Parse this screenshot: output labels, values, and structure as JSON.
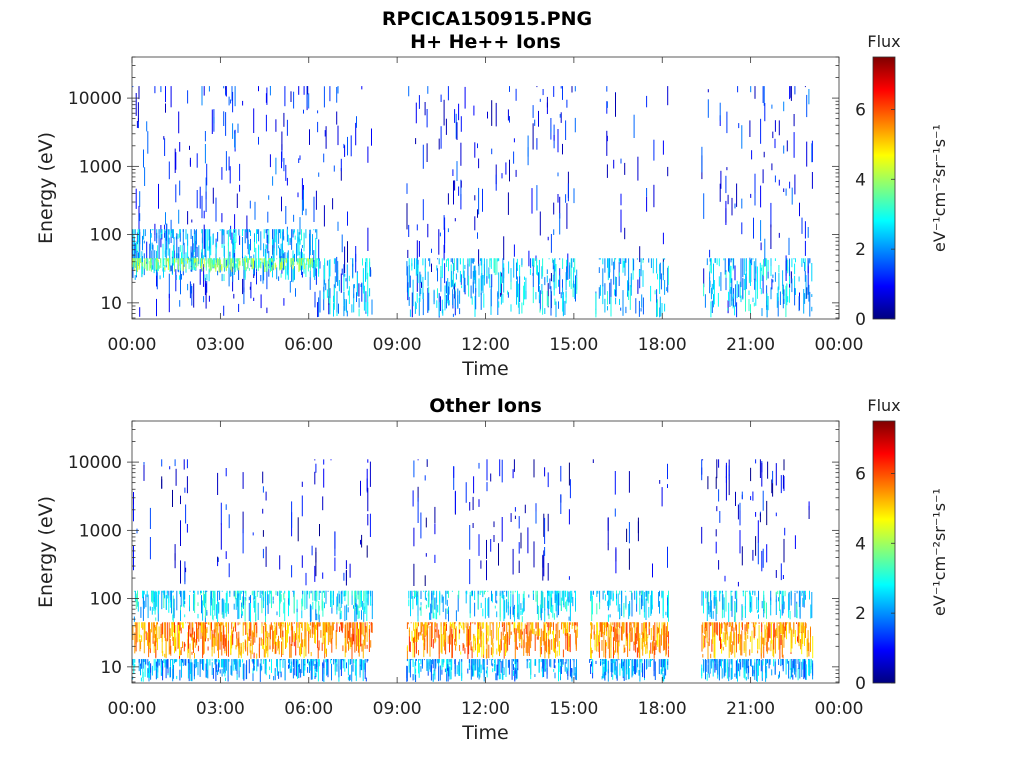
{
  "figure_title": "RPCICA150915.PNG",
  "colormap": [
    "#00007f",
    "#0000ff",
    "#007fff",
    "#00ffff",
    "#7fff7f",
    "#ffff00",
    "#ff7f00",
    "#ff0000",
    "#7f0000"
  ],
  "chart_data": [
    {
      "type": "heatmap",
      "title": "H+ He++ Ions",
      "xlabel": "Time",
      "ylabel": "Energy (eV)",
      "yscale": "log",
      "ylim": [
        5.8,
        40000
      ],
      "xlim": [
        "00:00",
        "24:00"
      ],
      "x_ticks": [
        "00:00",
        "03:00",
        "06:00",
        "09:00",
        "12:00",
        "15:00",
        "18:00",
        "21:00",
        "00:00"
      ],
      "y_ticks": [
        10,
        100,
        1000,
        10000
      ],
      "y_tick_labels": [
        "10",
        "100",
        "1000",
        "10000"
      ],
      "colorbar": {
        "title": "Flux",
        "label": "eV⁻¹cm⁻²sr⁻¹s⁻¹",
        "range": [
          0,
          7.5
        ],
        "ticks": [
          0,
          2,
          4,
          6
        ],
        "tick_labels": [
          "0",
          "2",
          "4",
          "6"
        ]
      },
      "data_gaps_hours": [
        [
          8.15,
          9.3
        ],
        [
          15.1,
          15.7
        ],
        [
          18.2,
          19.3
        ]
      ],
      "data_end_hour": 23.1,
      "bands": [
        {
          "t0": 0.0,
          "t1": 6.3,
          "e0": 6,
          "e1": 15000,
          "flux": 1.2,
          "density": 0.55
        },
        {
          "t0": 6.3,
          "t1": 8.15,
          "e0": 6,
          "e1": 15000,
          "flux": 1.0,
          "density": 0.35
        },
        {
          "t0": 9.3,
          "t1": 15.1,
          "e0": 6,
          "e1": 15000,
          "flux": 1.0,
          "density": 0.4
        },
        {
          "t0": 15.7,
          "t1": 18.2,
          "e0": 6,
          "e1": 15000,
          "flux": 1.0,
          "density": 0.25
        },
        {
          "t0": 19.3,
          "t1": 23.1,
          "e0": 6,
          "e1": 15000,
          "flux": 1.2,
          "density": 0.45
        },
        {
          "t0": 0.0,
          "t1": 6.3,
          "e0": 20,
          "e1": 120,
          "flux": 2.3,
          "density": 0.8
        },
        {
          "t0": 0.0,
          "t1": 6.3,
          "e0": 28,
          "e1": 45,
          "flux": 3.7,
          "density": 0.75
        },
        {
          "t0": 6.3,
          "t1": 23.1,
          "e0": 6,
          "e1": 45,
          "flux": 2.4,
          "density": 0.6
        }
      ]
    },
    {
      "type": "heatmap",
      "title": "Other Ions",
      "xlabel": "Time",
      "ylabel": "Energy (eV)",
      "yscale": "log",
      "ylim": [
        5.8,
        40000
      ],
      "xlim": [
        "00:00",
        "24:00"
      ],
      "x_ticks": [
        "00:00",
        "03:00",
        "06:00",
        "09:00",
        "12:00",
        "15:00",
        "18:00",
        "21:00",
        "00:00"
      ],
      "y_ticks": [
        10,
        100,
        1000,
        10000
      ],
      "y_tick_labels": [
        "10",
        "100",
        "1000",
        "10000"
      ],
      "colorbar": {
        "title": "Flux",
        "label": "eV⁻¹cm⁻²sr⁻¹s⁻¹",
        "range": [
          0,
          7.5
        ],
        "ticks": [
          0,
          2,
          4,
          6
        ],
        "tick_labels": [
          "0",
          "2",
          "4",
          "6"
        ]
      },
      "data_gaps_hours": [
        [
          8.15,
          9.3
        ],
        [
          15.1,
          15.5
        ],
        [
          18.2,
          19.3
        ]
      ],
      "data_end_hour": 23.1,
      "bands": [
        {
          "t0": 0.0,
          "t1": 23.1,
          "e0": 150,
          "e1": 11000,
          "flux": 0.8,
          "density": 0.18
        },
        {
          "t0": 0.0,
          "t1": 23.1,
          "e0": 45,
          "e1": 130,
          "flux": 2.6,
          "density": 0.6
        },
        {
          "t0": 0.0,
          "t1": 23.1,
          "e0": 13,
          "e1": 45,
          "flux": 5.5,
          "density": 0.9
        },
        {
          "t0": 0.0,
          "t1": 23.1,
          "e0": 6,
          "e1": 13,
          "flux": 2.2,
          "density": 0.7
        }
      ]
    }
  ]
}
